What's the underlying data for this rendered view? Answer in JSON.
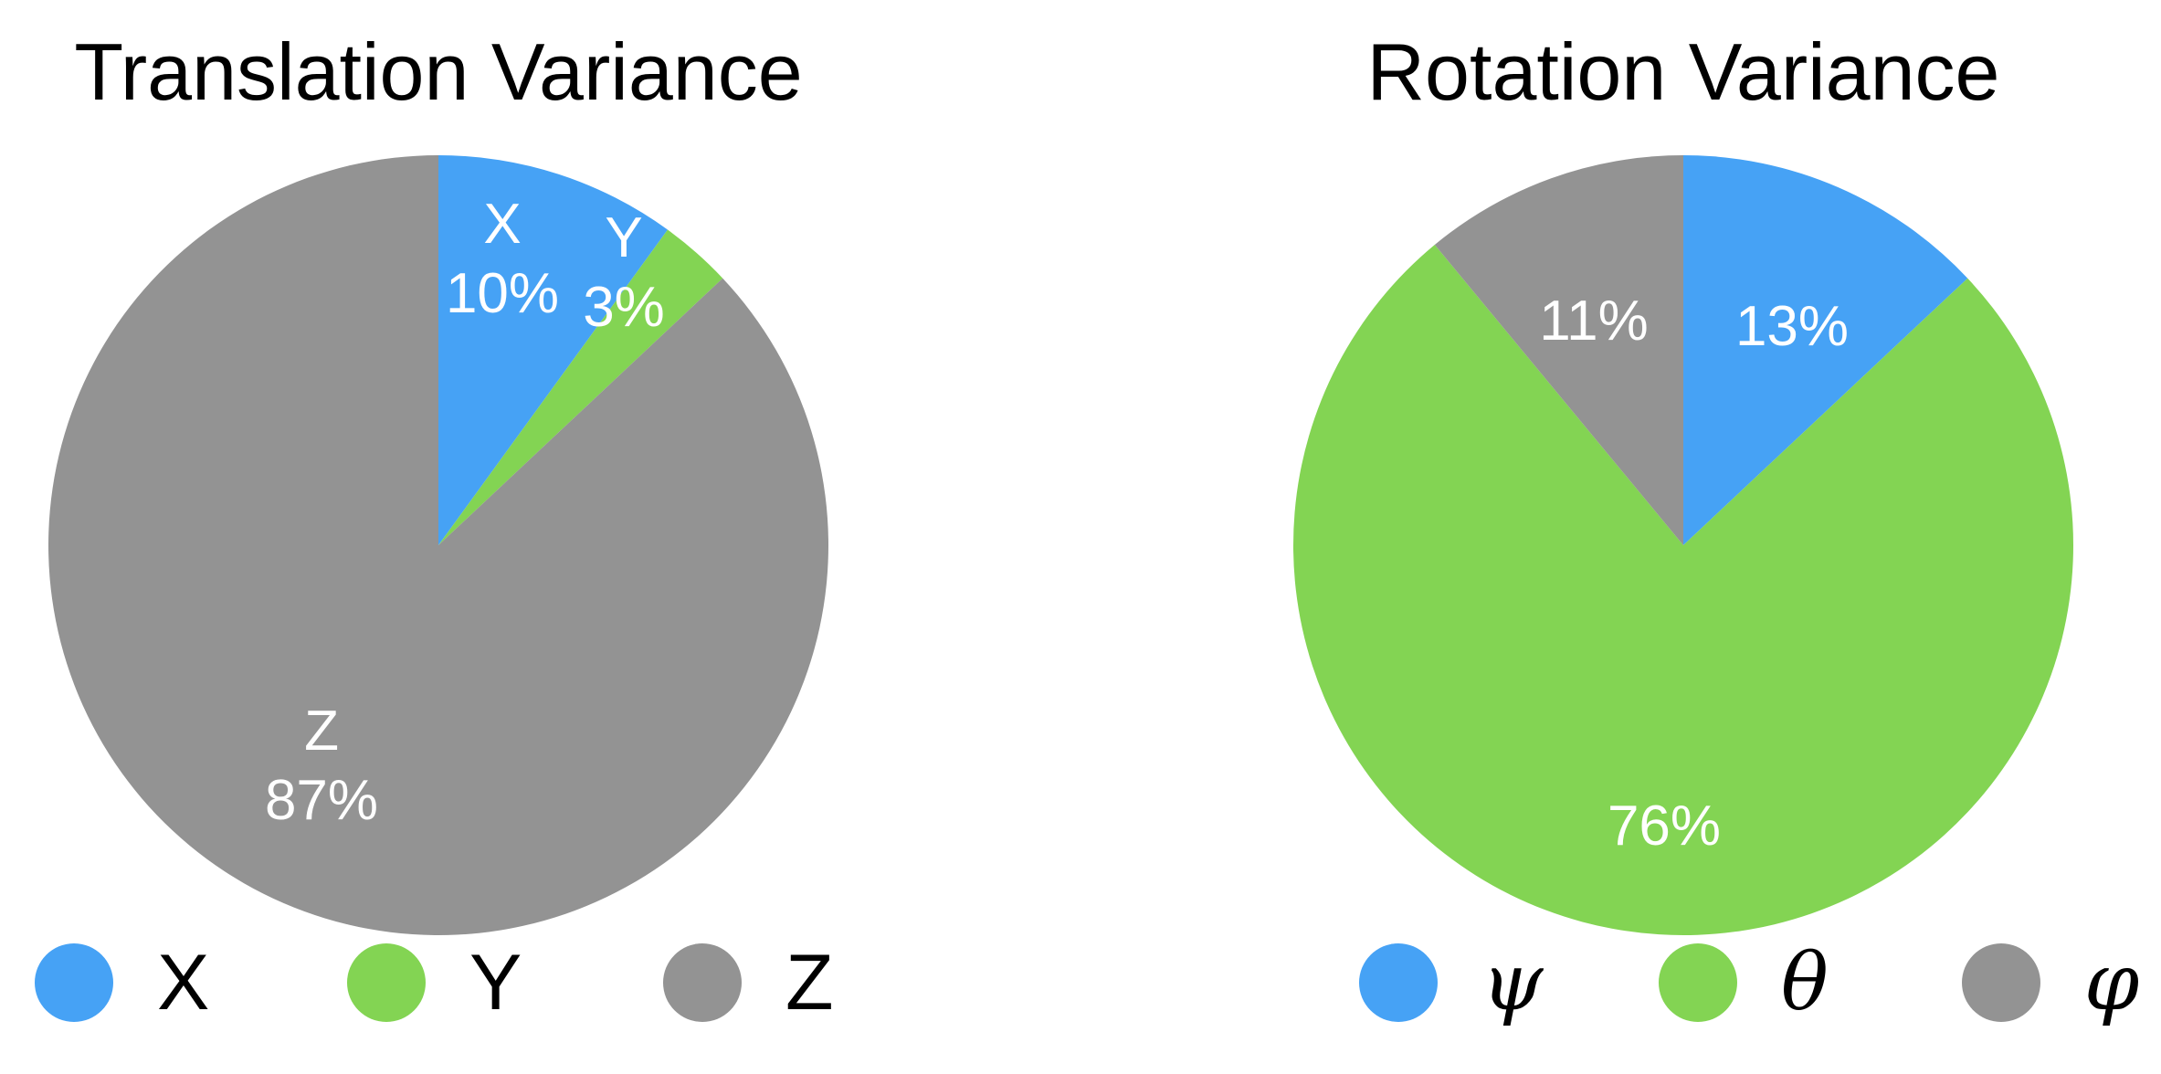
{
  "chart_data": [
    {
      "type": "pie",
      "title": "Translation Variance",
      "slices": [
        {
          "label": "X",
          "value": 10,
          "value_label": "10%",
          "color": "#46A2F5"
        },
        {
          "label": "Y",
          "value": 3,
          "value_label": "3%",
          "color": "#83D453"
        },
        {
          "label": "Z",
          "value": 87,
          "value_label": "87%",
          "color": "#939393"
        }
      ],
      "legend": [
        "X",
        "Y",
        "Z"
      ],
      "legend_position": "bottom"
    },
    {
      "type": "pie",
      "title": "Rotation Variance",
      "slices": [
        {
          "label": "ψ",
          "value": 13,
          "value_label": "13%",
          "color": "#46A2F5"
        },
        {
          "label": "θ",
          "value": 76,
          "value_label": "76%",
          "color": "#83D453"
        },
        {
          "label": "φ",
          "value": 11,
          "value_label": "11%",
          "color": "#939393"
        }
      ],
      "legend": [
        "ψ",
        "θ",
        "φ"
      ],
      "legend_position": "bottom"
    }
  ]
}
